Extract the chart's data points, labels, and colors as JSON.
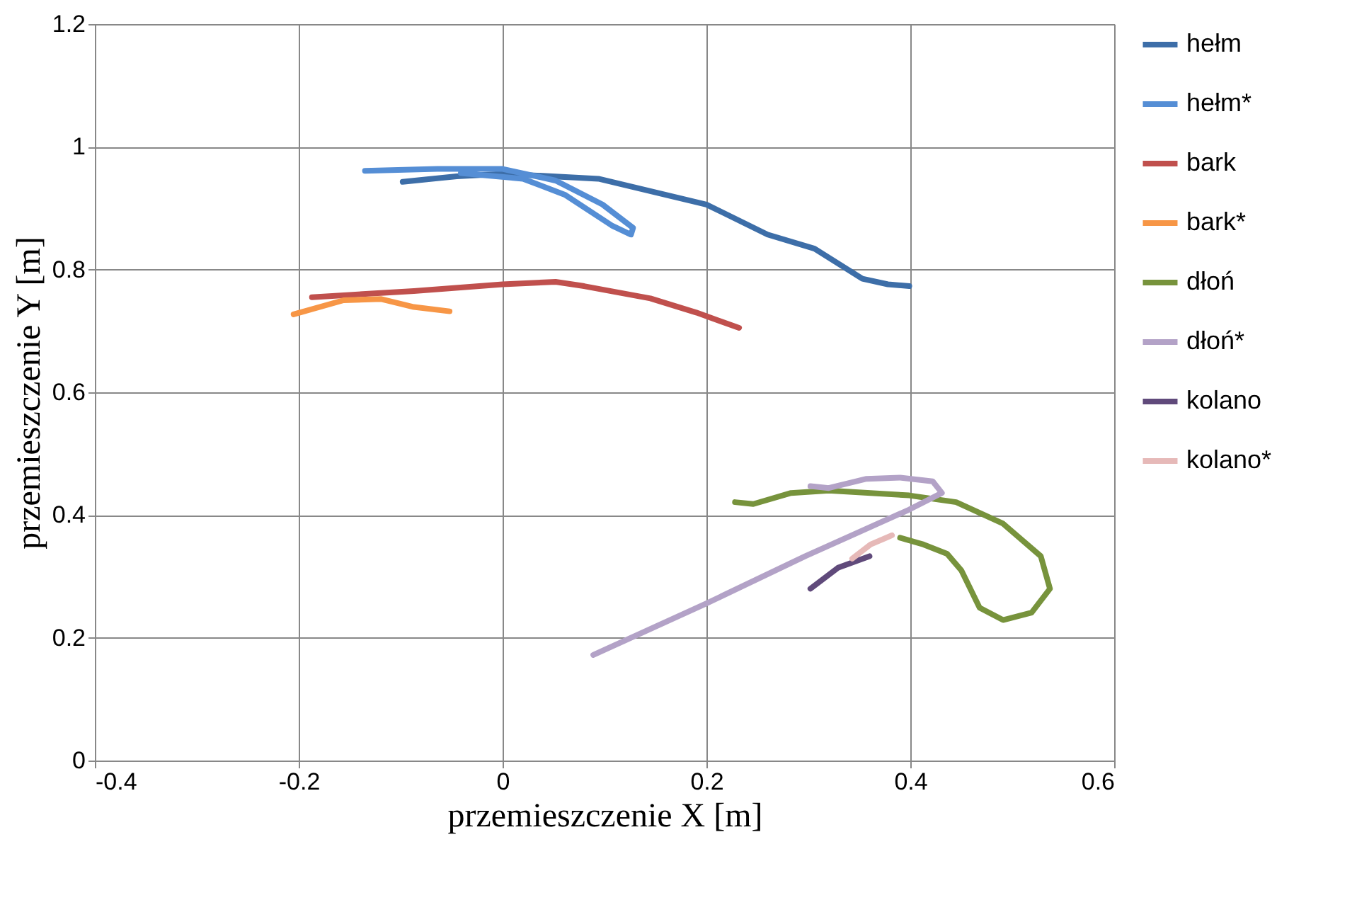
{
  "chart_data": {
    "type": "line",
    "xlabel": "przemieszczenie X [m]",
    "ylabel": "przemieszczenie Y [m]",
    "xlim": [
      -0.4,
      0.6
    ],
    "xticks": [
      -0.4,
      -0.2,
      0,
      0.2,
      0.4,
      0.6
    ],
    "ylim": [
      0,
      1.2
    ],
    "yticks": [
      0,
      0.2,
      0.4,
      0.6,
      0.8,
      1,
      1.2
    ],
    "grid": true,
    "legend": "right",
    "marker": "none",
    "line_style": "solid",
    "series": [
      {
        "name": "hełm",
        "color": "#3d6ea8",
        "x": [
          -0.098,
          -0.045,
          0,
          0.094,
          0.2,
          0.26,
          0.306,
          0.353,
          0.378,
          0.399
        ],
        "values": [
          0.943,
          0.952,
          0.956,
          0.948,
          0.906,
          0.857,
          0.834,
          0.785,
          0.776,
          0.773
        ]
      },
      {
        "name": "hełm*",
        "color": "#558ed5",
        "x": [
          -0.135,
          -0.064,
          0,
          0.052,
          0.098,
          0.128,
          0.126,
          0.107,
          0.061,
          0.02,
          -0.041
        ],
        "values": [
          0.961,
          0.964,
          0.964,
          0.945,
          0.906,
          0.868,
          0.857,
          0.872,
          0.922,
          0.948,
          0.957
        ]
      },
      {
        "name": "bark",
        "color": "#c0504d",
        "x": [
          -0.187,
          -0.087,
          0,
          0.052,
          0.08,
          0.145,
          0.19,
          0.232
        ],
        "values": [
          0.755,
          0.765,
          0.776,
          0.78,
          0.773,
          0.753,
          0.73,
          0.705
        ]
      },
      {
        "name": "bark*",
        "color": "#f79646",
        "x": [
          -0.205,
          -0.156,
          -0.119,
          -0.087,
          -0.052
        ],
        "values": [
          0.727,
          0.75,
          0.752,
          0.739,
          0.732
        ]
      },
      {
        "name": "dłoń",
        "color": "#77933c",
        "x": [
          0.228,
          0.246,
          0.283,
          0.32,
          0.399,
          0.445,
          0.491,
          0.528,
          0.537,
          0.519,
          0.491,
          0.468,
          0.45,
          0.436,
          0.413,
          0.39
        ],
        "values": [
          0.421,
          0.418,
          0.436,
          0.44,
          0.432,
          0.421,
          0.386,
          0.333,
          0.28,
          0.241,
          0.229,
          0.249,
          0.31,
          0.337,
          0.352,
          0.363
        ]
      },
      {
        "name": "dłoń*",
        "color": "#b3a2c7",
        "x": [
          0.089,
          0.2,
          0.297,
          0.399,
          0.431,
          0.422,
          0.39,
          0.357,
          0.32,
          0.302
        ],
        "values": [
          0.172,
          0.256,
          0.333,
          0.409,
          0.436,
          0.455,
          0.461,
          0.459,
          0.444,
          0.447
        ]
      },
      {
        "name": "kolano",
        "color": "#604a7b",
        "x": [
          0.302,
          0.329,
          0.36
        ],
        "values": [
          0.28,
          0.314,
          0.333
        ]
      },
      {
        "name": "kolano*",
        "color": "#e6b9b8",
        "x": [
          0.343,
          0.361,
          0.382
        ],
        "values": [
          0.329,
          0.352,
          0.367
        ]
      }
    ]
  }
}
